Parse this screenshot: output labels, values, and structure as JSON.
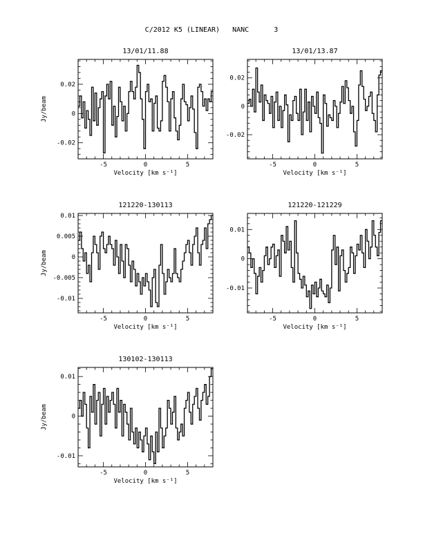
{
  "page": {
    "title": "C/2012 K5 (LINEAR)   NANC      3"
  },
  "chart_data": [
    {
      "type": "line",
      "title": "13/01/11.88",
      "xlabel": "Velocity [km s⁻¹]",
      "ylabel": "Jy/beam",
      "xlim": [
        -8,
        8
      ],
      "ylim": [
        -0.031,
        0.037
      ],
      "yticks": [
        -0.02,
        0,
        0.02
      ],
      "ytick_labels": [
        "-0.02",
        "0",
        "0.02"
      ],
      "xticks": [
        -5,
        0,
        5
      ],
      "xtick_labels": [
        "-5",
        "0",
        "5"
      ],
      "series": [
        {
          "x": [
            -8.0,
            -7.8,
            -7.6,
            -7.4,
            -7.2,
            -7.0,
            -6.8,
            -6.6,
            -6.4,
            -6.2,
            -6.0,
            -5.8,
            -5.6,
            -5.4,
            -5.2,
            -5.0,
            -4.8,
            -4.6,
            -4.4,
            -4.2,
            -4.0,
            -3.8,
            -3.6,
            -3.4,
            -3.2,
            -3.0,
            -2.8,
            -2.6,
            -2.4,
            -2.2,
            -2.0,
            -1.8,
            -1.6,
            -1.4,
            -1.2,
            -1.0,
            -0.8,
            -0.6,
            -0.4,
            -0.2,
            0.0,
            0.2,
            0.4,
            0.6,
            0.8,
            1.0,
            1.2,
            1.4,
            1.6,
            1.8,
            2.0,
            2.2,
            2.4,
            2.6,
            2.8,
            3.0,
            3.2,
            3.4,
            3.6,
            3.8,
            4.0,
            4.2,
            4.4,
            4.6,
            4.8,
            5.0,
            5.2,
            5.4,
            5.6,
            5.8,
            6.0,
            6.2,
            6.4,
            6.6,
            6.8,
            7.0,
            7.2,
            7.4,
            7.6,
            7.8
          ],
          "values": [
            0.005,
            0.012,
            -0.003,
            0.008,
            -0.01,
            0.002,
            -0.004,
            -0.015,
            0.018,
            -0.005,
            0.014,
            -0.008,
            0.004,
            0.01,
            0.015,
            -0.027,
            0.012,
            0.02,
            0.01,
            0.022,
            -0.008,
            0.005,
            -0.016,
            -0.002,
            0.018,
            0.008,
            -0.005,
            0.005,
            -0.012,
            0.0,
            0.015,
            0.022,
            0.015,
            0.01,
            0.018,
            0.033,
            0.028,
            0.01,
            -0.004,
            -0.024,
            0.015,
            0.02,
            0.008,
            0.01,
            -0.012,
            0.007,
            0.012,
            -0.01,
            -0.012,
            -0.005,
            0.022,
            0.026,
            0.018,
            0.008,
            -0.012,
            0.01,
            0.015,
            -0.003,
            -0.012,
            -0.018,
            -0.008,
            0.01,
            0.02,
            0.008,
            0.006,
            -0.005,
            0.004,
            0.012,
            0.003,
            -0.013,
            -0.024,
            0.018,
            0.02,
            0.015,
            0.005,
            0.01,
            0.002,
            0.01,
            0.008,
            0.015
          ]
        }
      ]
    },
    {
      "type": "line",
      "title": "13/01/13.87",
      "xlabel": "Velocity [km s⁻¹]",
      "ylabel": "",
      "xlim": [
        -8,
        8
      ],
      "ylim": [
        -0.037,
        0.033
      ],
      "yticks": [
        -0.02,
        0,
        0.02
      ],
      "ytick_labels": [
        "-0.02",
        "0",
        "0.02"
      ],
      "xticks": [
        -5,
        0,
        5
      ],
      "xtick_labels": [
        "-5",
        "0",
        "5"
      ],
      "series": [
        {
          "x": [
            -8.0,
            -7.8,
            -7.6,
            -7.4,
            -7.2,
            -7.0,
            -6.8,
            -6.6,
            -6.4,
            -6.2,
            -6.0,
            -5.8,
            -5.6,
            -5.4,
            -5.2,
            -5.0,
            -4.8,
            -4.6,
            -4.4,
            -4.2,
            -4.0,
            -3.8,
            -3.6,
            -3.4,
            -3.2,
            -3.0,
            -2.8,
            -2.6,
            -2.4,
            -2.2,
            -2.0,
            -1.8,
            -1.6,
            -1.4,
            -1.2,
            -1.0,
            -0.8,
            -0.6,
            -0.4,
            -0.2,
            0.0,
            0.2,
            0.4,
            0.6,
            0.8,
            1.0,
            1.2,
            1.4,
            1.6,
            1.8,
            2.0,
            2.2,
            2.4,
            2.6,
            2.8,
            3.0,
            3.2,
            3.4,
            3.6,
            3.8,
            4.0,
            4.2,
            4.4,
            4.6,
            4.8,
            5.0,
            5.2,
            5.4,
            5.6,
            5.8,
            6.0,
            6.2,
            6.4,
            6.6,
            6.8,
            7.0,
            7.2,
            7.4,
            7.6,
            7.8
          ],
          "values": [
            0.002,
            0.005,
            0.0,
            0.012,
            -0.004,
            0.027,
            0.01,
            0.003,
            0.015,
            -0.01,
            0.008,
            0.004,
            0.002,
            -0.005,
            0.007,
            -0.015,
            0.003,
            0.01,
            -0.01,
            0.0,
            -0.015,
            -0.003,
            0.008,
            0.001,
            -0.025,
            -0.006,
            -0.01,
            0.004,
            0.007,
            -0.005,
            -0.01,
            0.012,
            -0.02,
            -0.004,
            0.012,
            -0.01,
            0.003,
            -0.018,
            0.007,
            0.0,
            -0.005,
            0.01,
            -0.008,
            -0.012,
            -0.033,
            0.008,
            0.002,
            -0.014,
            -0.006,
            -0.008,
            -0.01,
            0.004,
            0.0,
            -0.015,
            -0.005,
            0.003,
            0.014,
            0.002,
            0.018,
            0.013,
            0.004,
            -0.005,
            0.0,
            -0.018,
            -0.028,
            -0.01,
            0.015,
            0.025,
            0.014,
            0.005,
            -0.003,
            0.0,
            0.007,
            0.01,
            -0.005,
            -0.01,
            -0.018,
            0.008,
            0.022,
            0.025
          ]
        }
      ]
    },
    {
      "type": "line",
      "title": "121220-130113",
      "xlabel": "Velocity [km s⁻¹]",
      "ylabel": "Jy/beam",
      "xlim": [
        -8,
        8
      ],
      "ylim": [
        -0.0135,
        0.0105
      ],
      "yticks": [
        -0.01,
        -0.005,
        0,
        0.005,
        0.01
      ],
      "ytick_labels": [
        "-0.01",
        "-0.005",
        "0",
        "0.005",
        "0.01"
      ],
      "xticks": [
        -5,
        0,
        5
      ],
      "xtick_labels": [
        "-5",
        "0",
        "5"
      ],
      "series": [
        {
          "x": [
            -8.0,
            -7.8,
            -7.6,
            -7.4,
            -7.2,
            -7.0,
            -6.8,
            -6.6,
            -6.4,
            -6.2,
            -6.0,
            -5.8,
            -5.6,
            -5.4,
            -5.2,
            -5.0,
            -4.8,
            -4.6,
            -4.4,
            -4.2,
            -4.0,
            -3.8,
            -3.6,
            -3.4,
            -3.2,
            -3.0,
            -2.8,
            -2.6,
            -2.4,
            -2.2,
            -2.0,
            -1.8,
            -1.6,
            -1.4,
            -1.2,
            -1.0,
            -0.8,
            -0.6,
            -0.4,
            -0.2,
            0.0,
            0.2,
            0.4,
            0.6,
            0.8,
            1.0,
            1.2,
            1.4,
            1.6,
            1.8,
            2.0,
            2.2,
            2.4,
            2.6,
            2.8,
            3.0,
            3.2,
            3.4,
            3.6,
            3.8,
            4.0,
            4.2,
            4.4,
            4.6,
            4.8,
            5.0,
            5.2,
            5.4,
            5.6,
            5.8,
            6.0,
            6.2,
            6.4,
            6.6,
            6.8,
            7.0,
            7.2,
            7.4,
            7.6,
            7.8
          ],
          "values": [
            0.004,
            0.006,
            0.002,
            -0.001,
            0.001,
            -0.004,
            -0.002,
            -0.006,
            0.001,
            0.005,
            0.003,
            0.001,
            -0.003,
            0.005,
            0.006,
            0.002,
            0.001,
            0.003,
            0.005,
            0.003,
            0.002,
            -0.002,
            0.004,
            0.0,
            -0.004,
            0.003,
            -0.001,
            -0.005,
            0.003,
            0.002,
            -0.002,
            -0.006,
            -0.001,
            -0.003,
            -0.007,
            -0.004,
            -0.006,
            -0.009,
            -0.005,
            -0.007,
            -0.004,
            -0.006,
            -0.008,
            -0.012,
            -0.005,
            -0.003,
            -0.011,
            -0.012,
            -0.002,
            0.003,
            -0.004,
            -0.009,
            -0.006,
            -0.003,
            -0.005,
            -0.006,
            -0.004,
            0.002,
            -0.004,
            -0.005,
            -0.006,
            -0.003,
            -0.001,
            0.001,
            0.003,
            0.004,
            0.001,
            -0.002,
            0.003,
            0.005,
            0.007,
            0.001,
            -0.002,
            0.003,
            0.004,
            0.007,
            0.002,
            0.008,
            0.009,
            0.01
          ]
        }
      ]
    },
    {
      "type": "line",
      "title": "121220-121229",
      "xlabel": "Velocity [km s⁻¹]",
      "ylabel": "",
      "xlim": [
        -8,
        8
      ],
      "ylim": [
        -0.0185,
        0.0155
      ],
      "yticks": [
        -0.01,
        0,
        0.01
      ],
      "ytick_labels": [
        "-0.01",
        "0",
        "0.01"
      ],
      "xticks": [
        -5,
        0,
        5
      ],
      "xtick_labels": [
        "-5",
        "0",
        "5"
      ],
      "series": [
        {
          "x": [
            -8.0,
            -7.8,
            -7.6,
            -7.4,
            -7.2,
            -7.0,
            -6.8,
            -6.6,
            -6.4,
            -6.2,
            -6.0,
            -5.8,
            -5.6,
            -5.4,
            -5.2,
            -5.0,
            -4.8,
            -4.6,
            -4.4,
            -4.2,
            -4.0,
            -3.8,
            -3.6,
            -3.4,
            -3.2,
            -3.0,
            -2.8,
            -2.6,
            -2.4,
            -2.2,
            -2.0,
            -1.8,
            -1.6,
            -1.4,
            -1.2,
            -1.0,
            -0.8,
            -0.6,
            -0.4,
            -0.2,
            0.0,
            0.2,
            0.4,
            0.6,
            0.8,
            1.0,
            1.2,
            1.4,
            1.6,
            1.8,
            2.0,
            2.2,
            2.4,
            2.6,
            2.8,
            3.0,
            3.2,
            3.4,
            3.6,
            3.8,
            4.0,
            4.2,
            4.4,
            4.6,
            4.8,
            5.0,
            5.2,
            5.4,
            5.6,
            5.8,
            6.0,
            6.2,
            6.4,
            6.6,
            6.8,
            7.0,
            7.2,
            7.4,
            7.6,
            7.8
          ],
          "values": [
            0.004,
            0.002,
            -0.003,
            0.0,
            -0.005,
            -0.012,
            -0.006,
            -0.003,
            -0.008,
            -0.004,
            0.001,
            0.004,
            -0.002,
            0.0,
            0.004,
            0.005,
            -0.003,
            0.001,
            0.003,
            -0.006,
            0.008,
            0.006,
            0.002,
            0.011,
            0.003,
            0.006,
            -0.003,
            -0.008,
            0.013,
            0.002,
            -0.005,
            -0.007,
            -0.01,
            -0.006,
            -0.009,
            -0.013,
            -0.011,
            -0.017,
            -0.009,
            -0.012,
            -0.008,
            -0.013,
            -0.01,
            -0.007,
            -0.011,
            -0.012,
            -0.013,
            -0.009,
            -0.015,
            -0.01,
            0.003,
            0.008,
            -0.002,
            0.004,
            -0.011,
            0.001,
            0.003,
            -0.004,
            -0.008,
            -0.005,
            -0.003,
            0.004,
            0.002,
            -0.005,
            0.001,
            0.005,
            0.003,
            0.008,
            0.002,
            -0.003,
            0.01,
            0.006,
            0.0,
            0.004,
            0.013,
            0.008,
            0.004,
            0.001,
            0.009,
            0.013
          ]
        }
      ]
    },
    {
      "type": "line",
      "title": "130102-130113",
      "xlabel": "Velocity [km s⁻¹]",
      "ylabel": "Jy/beam",
      "xlim": [
        -8,
        8
      ],
      "ylim": [
        -0.0128,
        0.0123
      ],
      "yticks": [
        -0.01,
        0,
        0.01
      ],
      "ytick_labels": [
        "-0.01",
        "0",
        "0.01"
      ],
      "xticks": [
        -5,
        0,
        5
      ],
      "xtick_labels": [
        "-5",
        "0",
        "5"
      ],
      "series": [
        {
          "x": [
            -8.0,
            -7.8,
            -7.6,
            -7.4,
            -7.2,
            -7.0,
            -6.8,
            -6.6,
            -6.4,
            -6.2,
            -6.0,
            -5.8,
            -5.6,
            -5.4,
            -5.2,
            -5.0,
            -4.8,
            -4.6,
            -4.4,
            -4.2,
            -4.0,
            -3.8,
            -3.6,
            -3.4,
            -3.2,
            -3.0,
            -2.8,
            -2.6,
            -2.4,
            -2.2,
            -2.0,
            -1.8,
            -1.6,
            -1.4,
            -1.2,
            -1.0,
            -0.8,
            -0.6,
            -0.4,
            -0.2,
            0.0,
            0.2,
            0.4,
            0.6,
            0.8,
            1.0,
            1.2,
            1.4,
            1.6,
            1.8,
            2.0,
            2.2,
            2.4,
            2.6,
            2.8,
            3.0,
            3.2,
            3.4,
            3.6,
            3.8,
            4.0,
            4.2,
            4.4,
            4.6,
            4.8,
            5.0,
            5.2,
            5.4,
            5.6,
            5.8,
            6.0,
            6.2,
            6.4,
            6.6,
            6.8,
            7.0,
            7.2,
            7.4,
            7.6,
            7.8
          ],
          "values": [
            0.002,
            0.004,
            0.0,
            0.006,
            0.003,
            -0.003,
            -0.008,
            0.005,
            0.001,
            0.008,
            -0.002,
            0.004,
            0.006,
            -0.005,
            0.003,
            0.007,
            -0.002,
            0.005,
            0.001,
            0.004,
            0.006,
            0.003,
            -0.003,
            0.007,
            0.001,
            0.004,
            -0.005,
            0.003,
            0.001,
            -0.002,
            -0.006,
            0.002,
            -0.004,
            -0.007,
            -0.003,
            -0.008,
            -0.004,
            -0.006,
            -0.009,
            -0.005,
            -0.003,
            -0.007,
            -0.011,
            -0.005,
            -0.009,
            -0.012,
            -0.004,
            -0.009,
            0.002,
            -0.003,
            -0.008,
            -0.005,
            -0.003,
            0.004,
            0.002,
            -0.002,
            0.001,
            0.005,
            -0.003,
            -0.006,
            -0.004,
            -0.002,
            -0.005,
            0.002,
            0.004,
            0.006,
            0.001,
            -0.002,
            0.003,
            0.005,
            0.007,
            0.002,
            -0.001,
            0.004,
            0.006,
            0.008,
            0.003,
            0.005,
            0.01,
            0.012
          ]
        }
      ]
    }
  ]
}
